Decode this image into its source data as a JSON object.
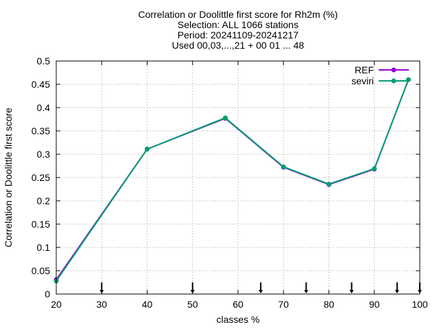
{
  "chart_data": {
    "type": "line",
    "title_lines": [
      "Correlation or Doolittle first score  for Rh2m (%)",
      "Selection: ALL   1066 stations",
      "Period: 20241109-20241217",
      "Used 00,03,...,21 + 00 01 ... 48"
    ],
    "xlabel": "classes %",
    "ylabel": "Correlation or Doolittle first score",
    "xlim": [
      20,
      100
    ],
    "ylim": [
      0,
      0.5
    ],
    "xticks": [
      20,
      30,
      40,
      50,
      60,
      70,
      80,
      90,
      100
    ],
    "xtick_labels": [
      "20",
      "30",
      "40",
      "50",
      "60",
      "70",
      "80",
      "90",
      "100"
    ],
    "yticks": [
      0,
      0.05,
      0.1,
      0.15,
      0.2,
      0.25,
      0.3,
      0.35,
      0.4,
      0.45,
      0.5
    ],
    "ytick_labels": [
      "0",
      "0.05",
      "0.1",
      "0.15",
      "0.2",
      "0.25",
      "0.3",
      "0.35",
      "0.4",
      "0.45",
      "0.5"
    ],
    "grid": true,
    "legend_position": "top-right",
    "class_boundary_arrows_x": [
      30,
      50,
      65,
      75,
      85,
      95,
      100
    ],
    "series": [
      {
        "name": "REF",
        "color": "#9400d3",
        "marker": "circle",
        "x": [
          20,
          40,
          57.2,
          70,
          80,
          90,
          97.5
        ],
        "y": [
          0.031,
          0.311,
          0.377,
          0.272,
          0.235,
          0.268,
          0.46
        ]
      },
      {
        "name": "seviri",
        "color": "#009e73",
        "marker": "circle",
        "x": [
          20,
          40,
          57.2,
          70,
          80,
          90,
          97.5
        ],
        "y": [
          0.028,
          0.311,
          0.378,
          0.273,
          0.236,
          0.269,
          0.46
        ]
      }
    ]
  }
}
